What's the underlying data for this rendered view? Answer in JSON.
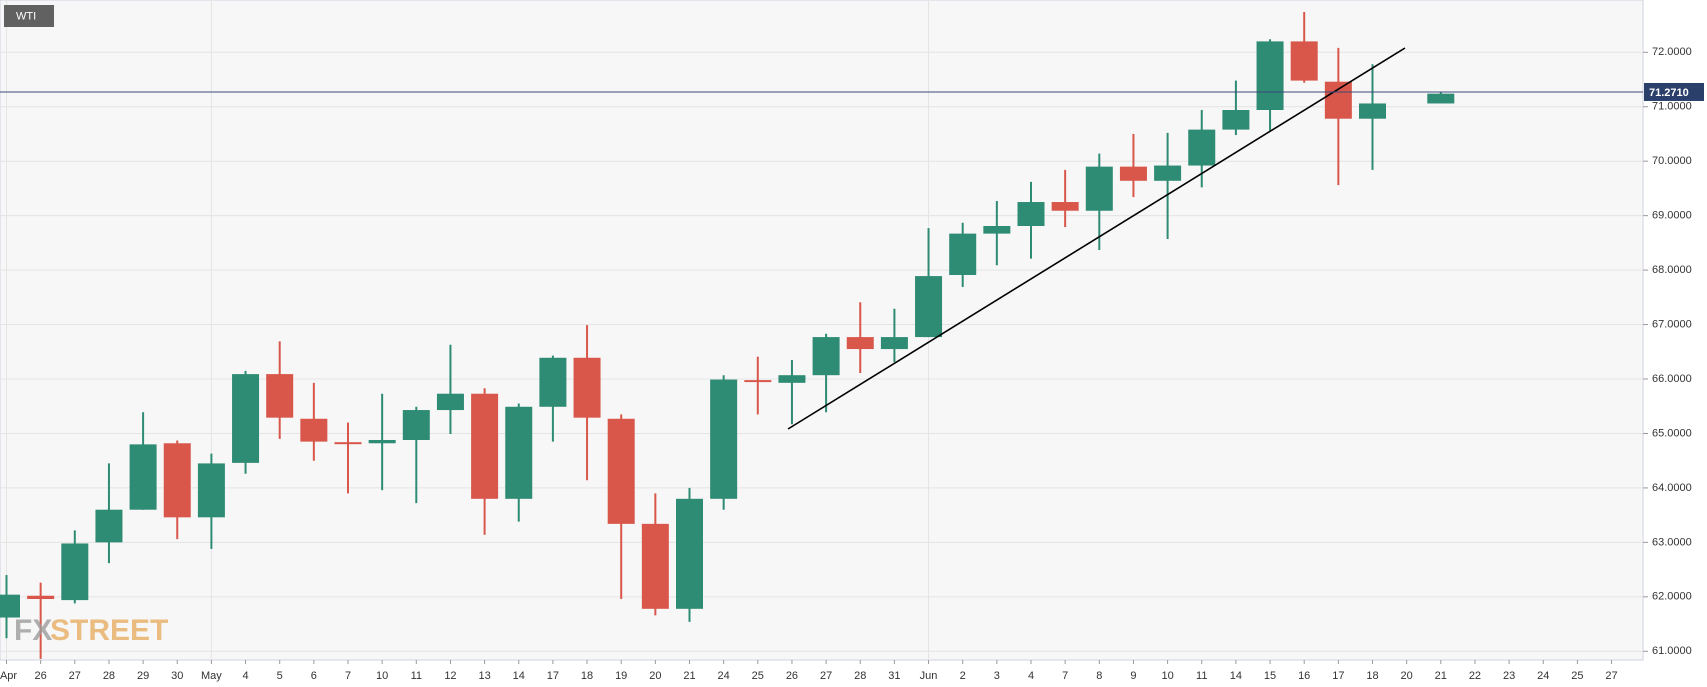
{
  "chart_data": {
    "type": "candlestick",
    "title": "WTI",
    "logo": {
      "part1": "FX",
      "part2": "STREET"
    },
    "categories": [
      "Apr",
      "26",
      "27",
      "28",
      "29",
      "30",
      "May",
      "4",
      "5",
      "6",
      "7",
      "10",
      "11",
      "12",
      "13",
      "14",
      "17",
      "18",
      "19",
      "20",
      "21",
      "24",
      "25",
      "26",
      "27",
      "28",
      "31",
      "Jun",
      "2",
      "3",
      "4",
      "7",
      "8",
      "9",
      "10",
      "11",
      "14",
      "15",
      "16",
      "17",
      "18",
      "20",
      "21",
      "22",
      "23",
      "24",
      "25",
      "27"
    ],
    "open": [
      61.62,
      62.02,
      61.94,
      63.0,
      63.6,
      64.82,
      63.46,
      64.46,
      66.09,
      65.27,
      64.84,
      64.82,
      64.88,
      65.43,
      65.73,
      63.8,
      65.49,
      66.39,
      65.27,
      63.34,
      61.78,
      63.8,
      65.98,
      65.93,
      66.07,
      66.77,
      66.55,
      66.77,
      67.91,
      68.67,
      68.81,
      69.25,
      69.09,
      69.9,
      69.64,
      69.92,
      70.58,
      70.94,
      72.2,
      71.46,
      70.78,
      null,
      71.06,
      null,
      null,
      null,
      null,
      null
    ],
    "high": [
      62.4,
      62.26,
      63.22,
      64.45,
      65.39,
      64.87,
      64.63,
      66.15,
      66.69,
      65.93,
      65.2,
      65.73,
      65.49,
      66.63,
      65.83,
      65.55,
      66.43,
      66.99,
      65.35,
      63.9,
      64.0,
      66.07,
      66.41,
      66.35,
      66.83,
      67.41,
      67.29,
      68.77,
      68.87,
      69.27,
      69.62,
      69.84,
      70.14,
      70.5,
      70.52,
      70.94,
      71.48,
      72.24,
      72.74,
      72.08,
      71.78,
      null,
      71.28,
      null,
      null,
      null,
      null,
      null
    ],
    "low": [
      61.24,
      60.86,
      61.88,
      62.62,
      63.6,
      63.06,
      62.88,
      64.26,
      64.9,
      64.5,
      63.9,
      63.96,
      63.72,
      64.99,
      63.14,
      63.38,
      64.85,
      64.14,
      61.96,
      61.66,
      61.54,
      63.6,
      65.35,
      65.17,
      65.39,
      66.11,
      66.31,
      66.77,
      67.69,
      68.09,
      68.21,
      68.79,
      68.37,
      69.34,
      68.57,
      69.52,
      70.48,
      70.56,
      71.44,
      69.56,
      69.84,
      null,
      71.06,
      null,
      null,
      null,
      null,
      null
    ],
    "close": [
      62.04,
      61.96,
      62.98,
      63.6,
      64.8,
      63.46,
      64.45,
      66.09,
      65.29,
      64.85,
      64.82,
      64.88,
      65.43,
      65.73,
      63.8,
      65.49,
      66.39,
      65.29,
      63.34,
      61.78,
      63.8,
      65.99,
      65.96,
      66.07,
      66.77,
      66.55,
      66.77,
      67.89,
      68.67,
      68.81,
      69.25,
      69.09,
      69.9,
      69.64,
      69.92,
      70.58,
      70.94,
      72.2,
      71.48,
      70.78,
      71.06,
      null,
      71.24,
      null,
      null,
      null,
      null,
      null
    ],
    "up_color": "#2e8b74",
    "down_color": "#d9574a",
    "current_price": {
      "value": 71.271,
      "label": "71.2710"
    },
    "ylim": [
      60.84,
      72.96
    ],
    "yticks": [
      {
        "value": 61,
        "label": "61.0000"
      },
      {
        "value": 62,
        "label": "62.0000"
      },
      {
        "value": 63,
        "label": "63.0000"
      },
      {
        "value": 64,
        "label": "64.0000"
      },
      {
        "value": 65,
        "label": "65.0000"
      },
      {
        "value": 66,
        "label": "66.0000"
      },
      {
        "value": 67,
        "label": "67.0000"
      },
      {
        "value": 68,
        "label": "68.0000"
      },
      {
        "value": 69,
        "label": "69.0000"
      },
      {
        "value": 70,
        "label": "70.0000"
      },
      {
        "value": 71,
        "label": "71.0000"
      },
      {
        "value": 72,
        "label": "72.0000"
      }
    ],
    "grid": true
  }
}
